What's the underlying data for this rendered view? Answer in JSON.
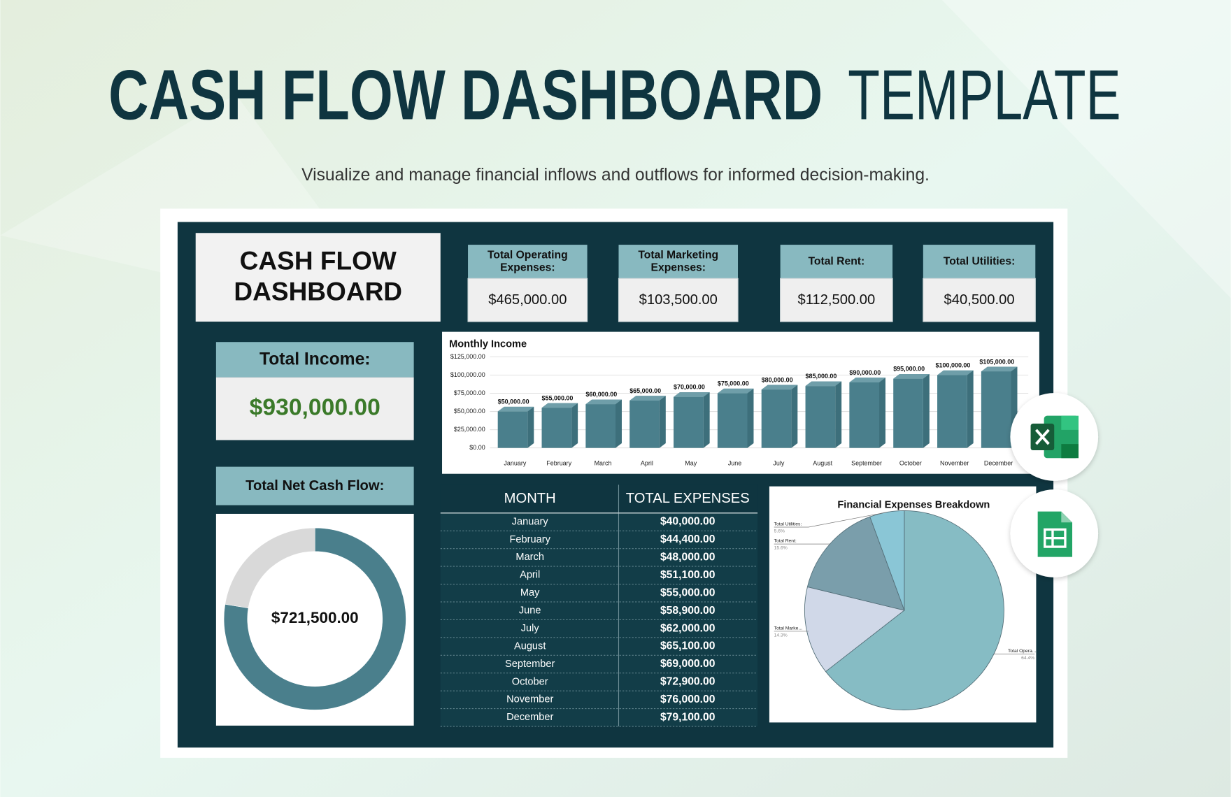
{
  "header": {
    "title_bold": "CASH FLOW DASHBOARD",
    "title_light": "TEMPLATE",
    "subtitle": "Visualize and manage financial inflows and outflows for informed decision-making."
  },
  "dashboard": {
    "title_lines": [
      "CASH FLOW",
      "DASHBOARD"
    ],
    "kpis": [
      {
        "label_lines": [
          "Total Operating",
          "Expenses:"
        ],
        "value": "$465,000.00"
      },
      {
        "label_lines": [
          "Total Marketing",
          "Expenses:"
        ],
        "value": "$103,500.00"
      },
      {
        "label_lines": [
          "Total Rent:"
        ],
        "value": "$112,500.00"
      },
      {
        "label_lines": [
          "Total Utilities:"
        ],
        "value": "$40,500.00"
      }
    ],
    "total_income": {
      "label": "Total Income:",
      "value": "$930,000.00"
    },
    "net_cash_flow": {
      "label": "Total Net Cash Flow:"
    }
  },
  "table": {
    "columns": [
      "MONTH",
      "TOTAL EXPENSES"
    ],
    "rows": [
      [
        "January",
        "$40,000.00"
      ],
      [
        "February",
        "$44,400.00"
      ],
      [
        "March",
        "$48,000.00"
      ],
      [
        "April",
        "$51,100.00"
      ],
      [
        "May",
        "$55,000.00"
      ],
      [
        "June",
        "$58,900.00"
      ],
      [
        "July",
        "$62,000.00"
      ],
      [
        "August",
        "$65,100.00"
      ],
      [
        "September",
        "$69,000.00"
      ],
      [
        "October",
        "$72,900.00"
      ],
      [
        "November",
        "$76,000.00"
      ],
      [
        "December",
        "$79,100.00"
      ]
    ]
  },
  "chart_data": [
    {
      "type": "bar",
      "title": "Monthly Income",
      "categories": [
        "January",
        "February",
        "March",
        "April",
        "May",
        "June",
        "July",
        "August",
        "September",
        "October",
        "November",
        "December"
      ],
      "values": [
        50000,
        55000,
        60000,
        65000,
        70000,
        75000,
        80000,
        85000,
        90000,
        95000,
        100000,
        105000
      ],
      "value_labels": [
        "$50,000.00",
        "$55,000.00",
        "$60,000.00",
        "$65,000.00",
        "$70,000.00",
        "$75,000.00",
        "$80,000.00",
        "$85,000.00",
        "$90,000.00",
        "$95,000.00",
        "$100,000.00",
        "$105,000.00"
      ],
      "color": "#4a7f8c",
      "ylim": [
        0,
        125000
      ],
      "yticks": [
        {
          "value": 0,
          "label": "$0.00"
        },
        {
          "value": 25000,
          "label": "$25,000.00"
        },
        {
          "value": 50000,
          "label": "$50,000.00"
        },
        {
          "value": 75000,
          "label": "$75,000.00"
        },
        {
          "value": 100000,
          "label": "$100,000.00"
        },
        {
          "value": 125000,
          "label": "$125,000.00"
        }
      ],
      "grid": true
    },
    {
      "type": "donut",
      "values": [
        721500,
        208500
      ],
      "colors": [
        "#4a7f8c",
        "#d9d9d9"
      ],
      "center_label": "$721,500.00"
    },
    {
      "type": "pie",
      "title": "Financial Expenses Breakdown",
      "categories": [
        "Total Opera...",
        "Total Marke...",
        "Total Rent:",
        "Total Utilities:"
      ],
      "values": [
        64.4,
        14.3,
        15.6,
        5.6
      ],
      "value_labels": [
        "64.4%",
        "14.3%",
        "15.6%",
        "5.6%"
      ],
      "colors": [
        "#86bcc4",
        "#d0d8e8",
        "#7a9eab",
        "#8ac6d6"
      ]
    }
  ]
}
